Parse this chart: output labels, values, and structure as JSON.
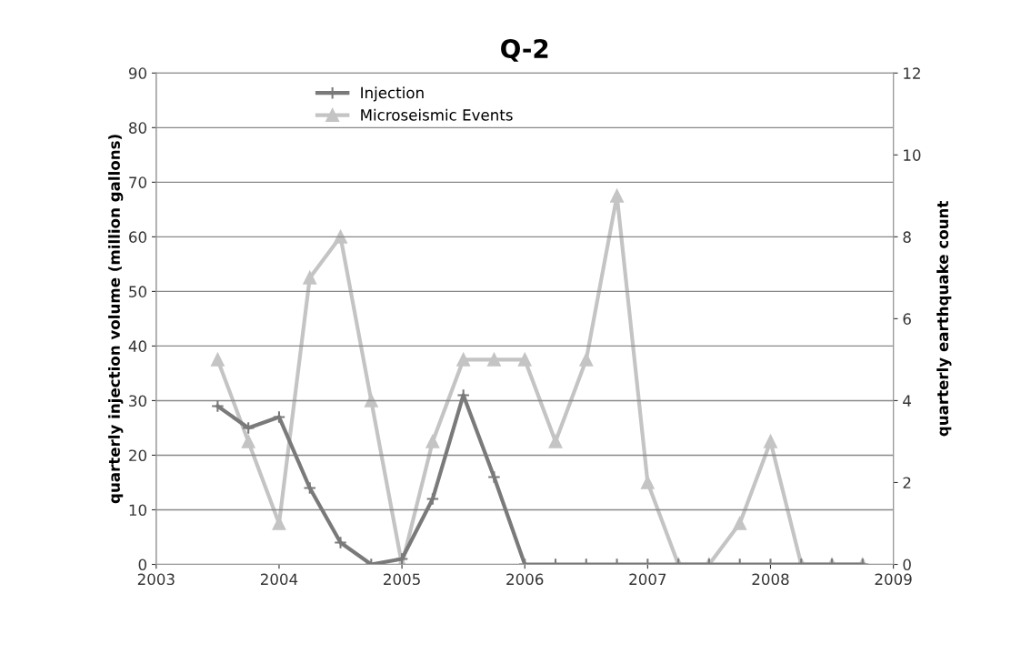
{
  "chart_data": {
    "type": "line",
    "title": "Q-2",
    "ylabel": "quarterly injection volume (million gallons)",
    "y2label": "quarterly earthquake count",
    "x": [
      2003.5,
      2003.75,
      2004,
      2004.25,
      2004.5,
      2004.75,
      2005,
      2005.25,
      2005.5,
      2005.75,
      2006,
      2006.25,
      2006.5,
      2006.75,
      2007,
      2007.25,
      2007.5,
      2007.75,
      2008,
      2008.25,
      2008.5,
      2008.75
    ],
    "series": [
      {
        "name": "Injection",
        "color": "#7a7a7a",
        "marker": "cross",
        "values": [
          29,
          25,
          27,
          14,
          4,
          0,
          1,
          12,
          31,
          16,
          0,
          0,
          0,
          0,
          0,
          0,
          0,
          0,
          0,
          0,
          0,
          0
        ]
      },
      {
        "name": "Microseismic Events",
        "color": "#c4c4c4",
        "marker": "triangle",
        "axis": "y2",
        "values": [
          5,
          3,
          1,
          7,
          8,
          4,
          0,
          3,
          5,
          5,
          5,
          3,
          5,
          9,
          2,
          0,
          0,
          1,
          3,
          0,
          0,
          0
        ]
      }
    ],
    "xlim": [
      2003,
      2009
    ],
    "xticks": [
      2003,
      2004,
      2005,
      2006,
      2007,
      2008,
      2009
    ],
    "ylim": [
      0,
      90
    ],
    "yticks": [
      0,
      10,
      20,
      30,
      40,
      50,
      60,
      70,
      80,
      90
    ],
    "y2lim": [
      0,
      12
    ],
    "y2ticks": [
      0,
      2,
      4,
      6,
      8,
      10,
      12
    ],
    "grid": "y",
    "legend": "top left",
    "line_style": "solid"
  }
}
